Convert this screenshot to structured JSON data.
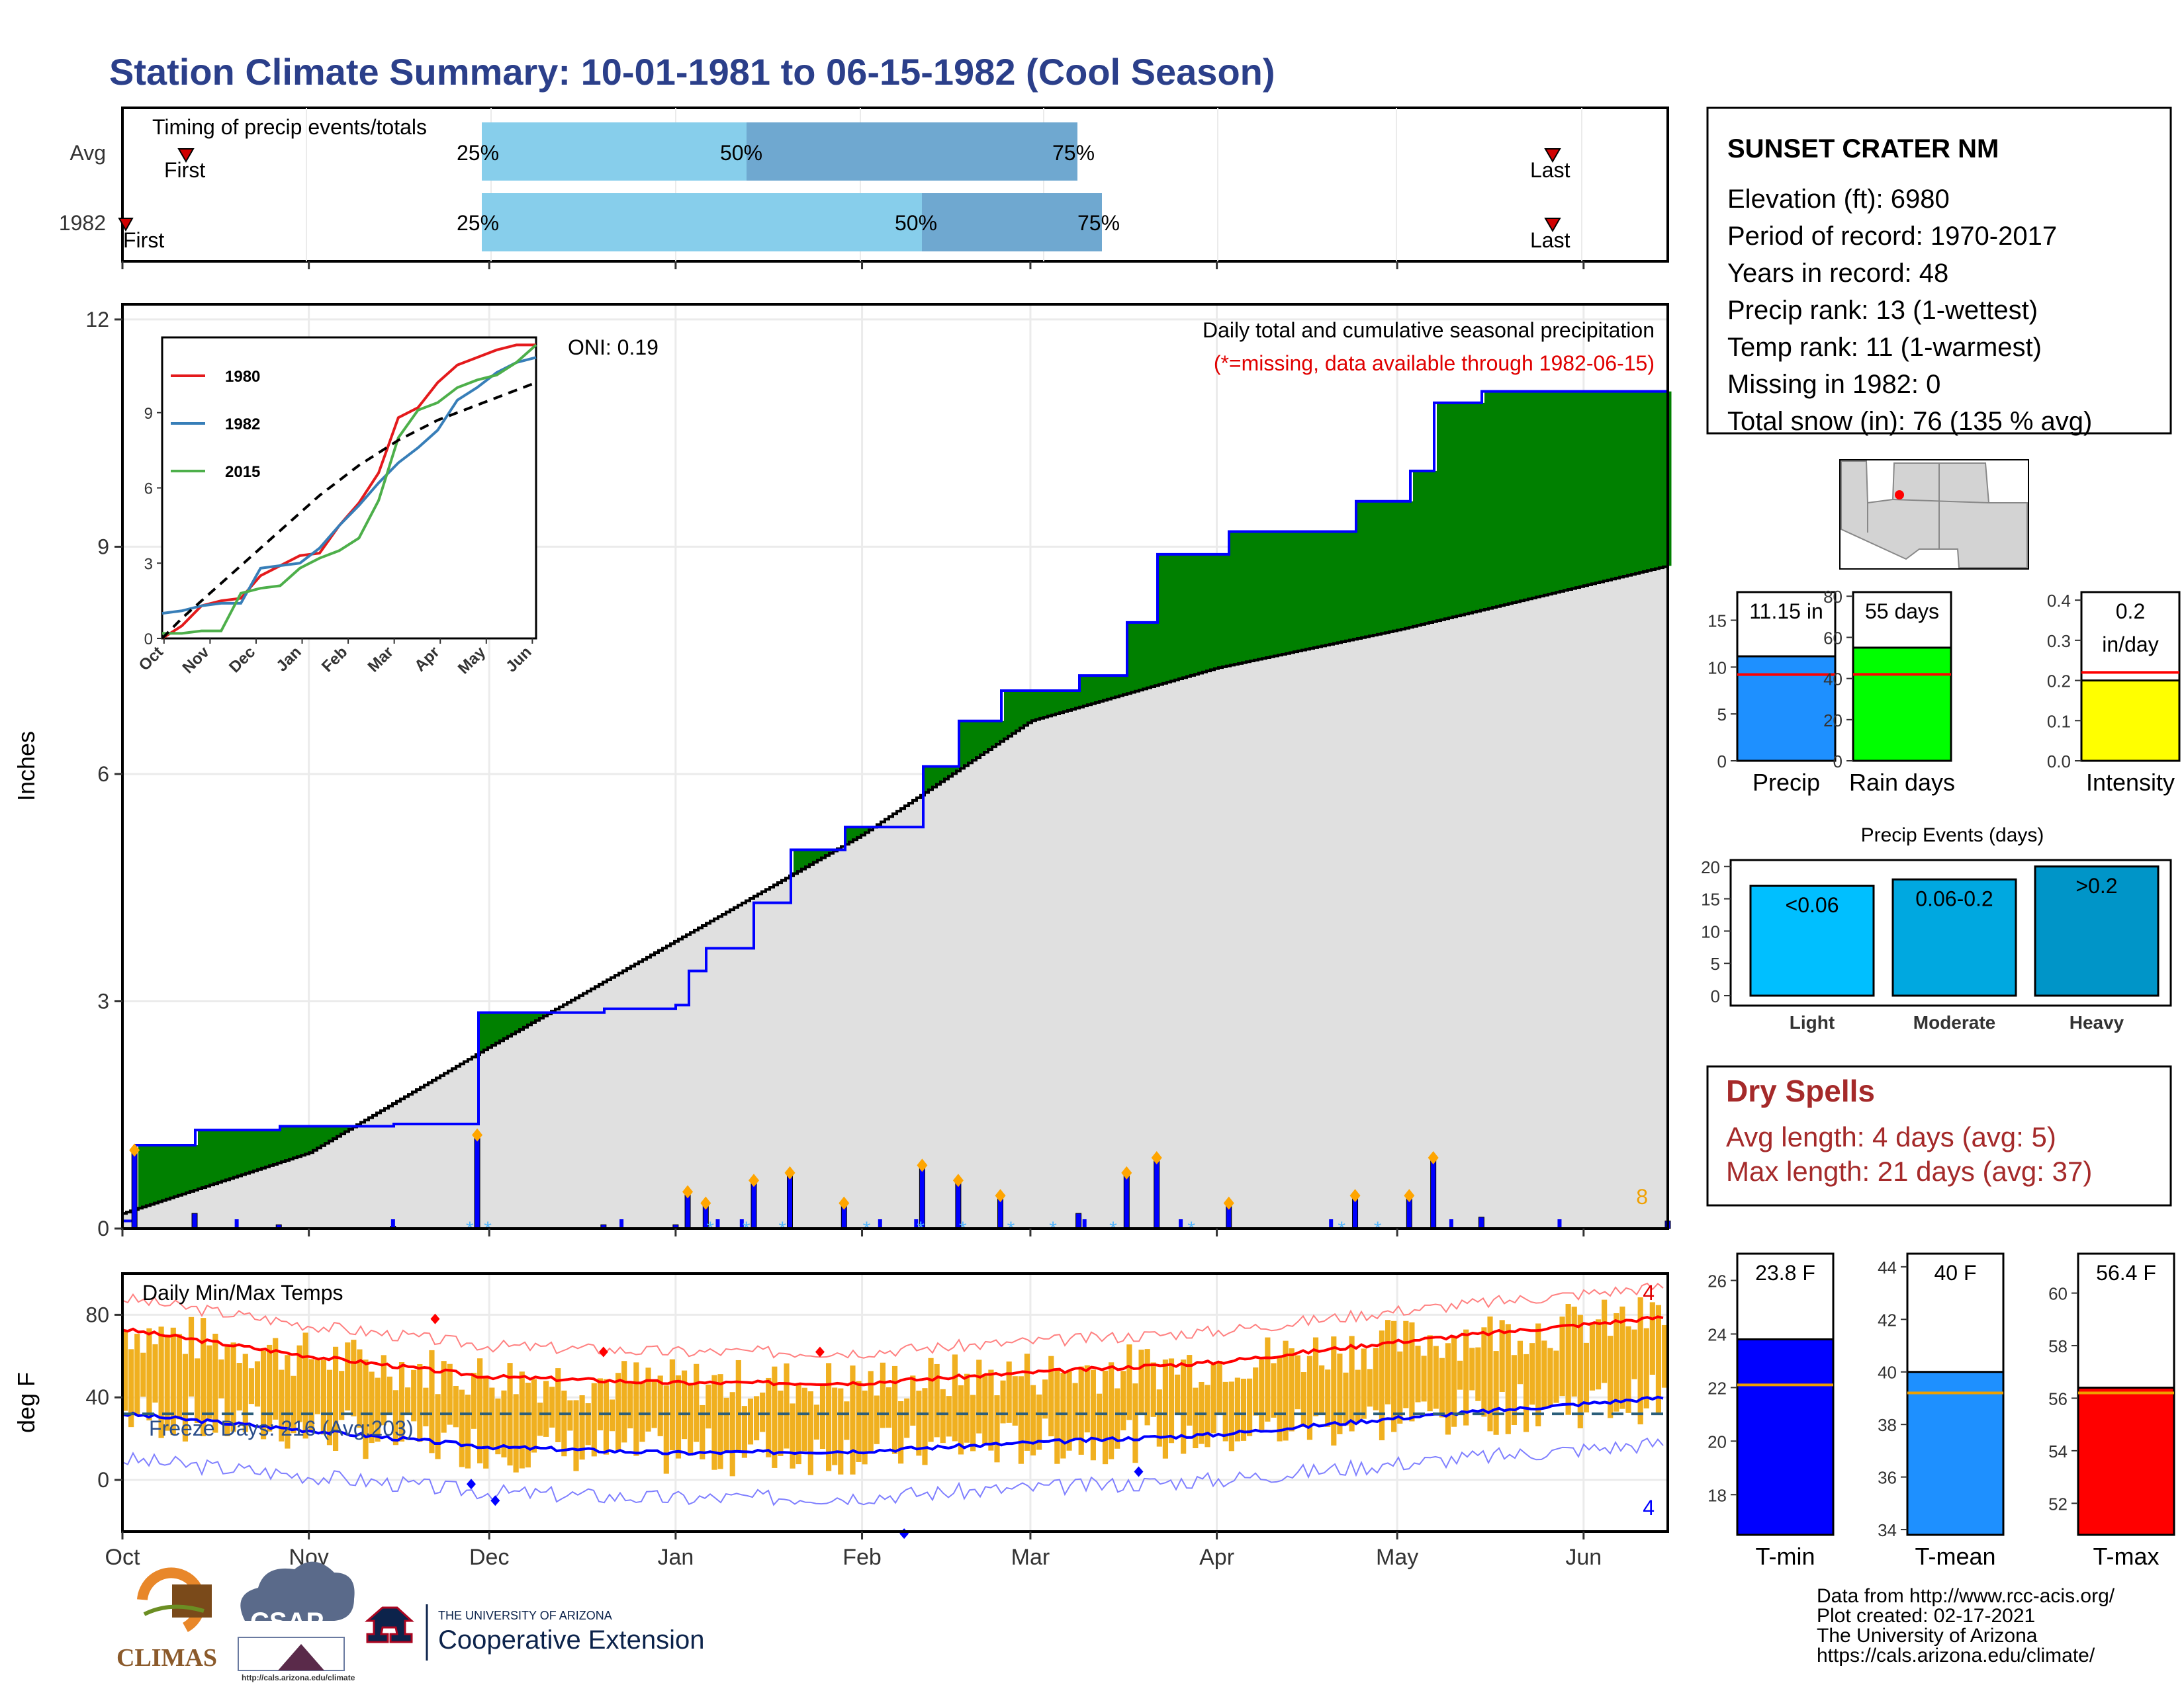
{
  "title": "Station Climate Summary: 10-01-1981 to 06-15-1982 (Cool Season)",
  "months": [
    "Oct",
    "Nov",
    "Dec",
    "Jan",
    "Feb",
    "Mar",
    "Apr",
    "May",
    "Jun"
  ],
  "timing": {
    "label": "Timing of precip events/totals",
    "rows": [
      {
        "name": "Avg",
        "first_label": "First",
        "last_label": "Last",
        "p25": "25%",
        "p50": "50%",
        "p75": "75%"
      },
      {
        "name": "1982",
        "first_label": "First",
        "last_label": "Last",
        "p25": "25%",
        "p50": "50%",
        "p75": "75%"
      }
    ]
  },
  "main": {
    "ylabel": "Inches",
    "yticks": [
      "0",
      "3",
      "6",
      "9",
      "12"
    ],
    "note1": "Daily total and cumulative seasonal precipitation",
    "note2": "(*=missing, data available through 1982-06-15)",
    "oni": "ONI: 0.19",
    "corner_count": "8"
  },
  "inset": {
    "yticks": [
      "0",
      "3",
      "6",
      "9"
    ],
    "xticks": [
      "Oct",
      "Nov",
      "Dec",
      "Jan",
      "Feb",
      "Mar",
      "Apr",
      "May",
      "Jun"
    ],
    "legend": [
      {
        "name": "1980",
        "color": "#e41a1c"
      },
      {
        "name": "1982",
        "color": "#377eb8"
      },
      {
        "name": "2015",
        "color": "#4daf4a"
      }
    ]
  },
  "temps": {
    "label": "Daily Min/Max Temps",
    "ylabel": "deg F",
    "yticks": [
      "0",
      "40",
      "80"
    ],
    "freeze": "Freeze Days: 216 (Avg:203)",
    "count_hi": "4",
    "count_lo": "4"
  },
  "station": {
    "name": "SUNSET CRATER NM",
    "lines": [
      "Elevation (ft): 6980",
      "Period of record: 1970-2017",
      "Years in record: 48",
      "Precip rank: 13 (1-wettest)",
      "Temp rank: 11 (1-warmest)",
      "Missing in 1982: 0",
      "Total snow (in): 76 (135 % avg)"
    ]
  },
  "summary_bars": [
    {
      "label": "Precip",
      "value_text": "11.15 in",
      "value": 11.15,
      "avg": 9.2,
      "ymax": 18,
      "ticks": [
        "0",
        "5",
        "10",
        "15"
      ],
      "color": "#1e90ff"
    },
    {
      "label": "Rain days",
      "value_text": "55 days",
      "value": 55,
      "avg": 42,
      "ymax": 82,
      "ticks": [
        "0",
        "20",
        "40",
        "60",
        "80"
      ],
      "color": "#00ff00"
    },
    {
      "label": "Intensity",
      "value_text": "0.2",
      "value_text2": "in/day",
      "value": 0.2,
      "avg": 0.22,
      "ymax": 0.42,
      "ticks": [
        "0.0",
        "0.1",
        "0.2",
        "0.3",
        "0.4"
      ],
      "color": "#ffff00"
    }
  ],
  "events": {
    "title": "Precip Events (days)",
    "ticks": [
      "0",
      "5",
      "10",
      "15",
      "20"
    ],
    "bars": [
      {
        "cat": "Light",
        "label": "<0.06",
        "value": 17,
        "color": "#00bfff"
      },
      {
        "cat": "Moderate",
        "label": "0.06-0.2",
        "value": 18,
        "color": "#00a8e0"
      },
      {
        "cat": "Heavy",
        "label": ">0.2",
        "value": 20,
        "color": "#0095c8"
      }
    ]
  },
  "dry": {
    "title": "Dry Spells",
    "avg": "Avg length: 4 days (avg: 5)",
    "max": "Max length: 21 days (avg: 37)"
  },
  "temp_bars": [
    {
      "label": "T-min",
      "value_text": "23.8 F",
      "value": 23.8,
      "avg": 22.1,
      "ymin": 16.5,
      "ymax": 27,
      "ticks": [
        "18",
        "20",
        "22",
        "24",
        "26"
      ],
      "color": "#0000ff"
    },
    {
      "label": "T-mean",
      "value_text": "40 F",
      "value": 40,
      "avg": 39.2,
      "ymin": 33.8,
      "ymax": 44.5,
      "ticks": [
        "34",
        "36",
        "38",
        "40",
        "42",
        "44"
      ],
      "color": "#1e90ff"
    },
    {
      "label": "T-max",
      "value_text": "56.4 F",
      "value": 56.4,
      "avg": 56.2,
      "ymin": 50.8,
      "ymax": 61.5,
      "ticks": [
        "52",
        "54",
        "56",
        "58",
        "60"
      ],
      "color": "#ff0000"
    }
  ],
  "credits": [
    "Data from http://www.rcc-acis.org/",
    "Plot created: 02-17-2021",
    "The University of Arizona",
    "https://cals.arizona.edu/climate/"
  ],
  "logos": {
    "climas": "CLIMAS",
    "csap": "CSAP",
    "csap_url": "http://cals.arizona.edu/climate",
    "ua_small": "THE UNIVERSITY OF ARIZONA",
    "ua_big": "Cooperative Extension"
  },
  "chart_data": [
    {
      "type": "area",
      "title": "Daily total and cumulative seasonal precipitation",
      "ylabel": "Inches",
      "ylim": [
        0,
        12.2
      ],
      "x_range": [
        "1981-10-01",
        "1982-06-15"
      ],
      "cumulative_1982": [
        {
          "x": "1981-10-01",
          "y": 0.1
        },
        {
          "x": "1981-10-03",
          "y": 1.1
        },
        {
          "x": "1981-10-13",
          "y": 1.3
        },
        {
          "x": "1981-10-27",
          "y": 1.35
        },
        {
          "x": "1981-11-15",
          "y": 1.38
        },
        {
          "x": "1981-11-29",
          "y": 2.85
        },
        {
          "x": "1981-12-20",
          "y": 2.9
        },
        {
          "x": "1982-01-01",
          "y": 2.95
        },
        {
          "x": "1982-01-03",
          "y": 3.4
        },
        {
          "x": "1982-01-06",
          "y": 3.7
        },
        {
          "x": "1982-01-14",
          "y": 4.3
        },
        {
          "x": "1982-01-20",
          "y": 5.0
        },
        {
          "x": "1982-01-29",
          "y": 5.3
        },
        {
          "x": "1982-02-11",
          "y": 6.1
        },
        {
          "x": "1982-02-17",
          "y": 6.7
        },
        {
          "x": "1982-02-24",
          "y": 7.1
        },
        {
          "x": "1982-03-09",
          "y": 7.3
        },
        {
          "x": "1982-03-17",
          "y": 8.0
        },
        {
          "x": "1982-03-22",
          "y": 8.9
        },
        {
          "x": "1982-04-03",
          "y": 9.2
        },
        {
          "x": "1982-04-24",
          "y": 9.6
        },
        {
          "x": "1982-05-03",
          "y": 10.0
        },
        {
          "x": "1982-05-07",
          "y": 10.9
        },
        {
          "x": "1982-05-15",
          "y": 11.05
        },
        {
          "x": "1982-06-15",
          "y": 11.15
        }
      ],
      "average_cumulative": [
        {
          "x": "1981-10-01",
          "y": 0.2
        },
        {
          "x": "1981-11-01",
          "y": 1.0
        },
        {
          "x": "1981-12-01",
          "y": 2.4
        },
        {
          "x": "1982-01-01",
          "y": 3.8
        },
        {
          "x": "1982-02-01",
          "y": 5.2
        },
        {
          "x": "1982-03-01",
          "y": 6.7
        },
        {
          "x": "1982-04-01",
          "y": 7.4
        },
        {
          "x": "1982-05-01",
          "y": 7.9
        },
        {
          "x": "1982-06-15",
          "y": 8.75
        }
      ]
    },
    {
      "type": "line",
      "title": "Daily Min/Max Temps",
      "ylabel": "deg F",
      "ylim": [
        -25,
        100
      ],
      "avg_max": [
        {
          "x": "1981-10-01",
          "y": 73
        },
        {
          "x": "1981-11-01",
          "y": 60
        },
        {
          "x": "1981-12-01",
          "y": 50
        },
        {
          "x": "1982-01-01",
          "y": 47
        },
        {
          "x": "1982-02-01",
          "y": 47
        },
        {
          "x": "1982-03-01",
          "y": 52
        },
        {
          "x": "1982-04-01",
          "y": 57
        },
        {
          "x": "1982-05-01",
          "y": 67
        },
        {
          "x": "1982-06-15",
          "y": 79
        }
      ],
      "avg_min": [
        {
          "x": "1981-10-01",
          "y": 32
        },
        {
          "x": "1981-11-01",
          "y": 24
        },
        {
          "x": "1981-12-01",
          "y": 16
        },
        {
          "x": "1982-01-01",
          "y": 13
        },
        {
          "x": "1982-02-01",
          "y": 14
        },
        {
          "x": "1982-03-01",
          "y": 18
        },
        {
          "x": "1982-04-01",
          "y": 22
        },
        {
          "x": "1982-05-01",
          "y": 30
        },
        {
          "x": "1982-06-15",
          "y": 40
        }
      ],
      "freeze_line": 32
    }
  ]
}
